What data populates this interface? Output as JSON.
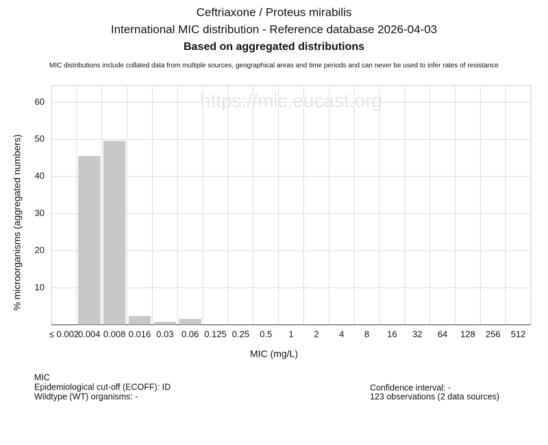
{
  "chart_data": {
    "type": "bar",
    "title": "Ceftriaxone / Proteus mirabilis",
    "subtitle": "International MIC distribution - Reference database 2026-04-03",
    "subtitle2": "Based on aggregated distributions",
    "note": "MIC distributions include collated data from multiple sources, geographical areas and time periods and can never be used to infer rates of resistance",
    "watermark": "https://mic.eucast.org",
    "x_label": "MIC (mg/L)",
    "y_label": "% microorganisms (aggregated numbers)",
    "categories": [
      "≤ 0.002",
      "0.004",
      "0.008",
      "0.016",
      "0.03",
      "0.06",
      "0.125",
      "0.25",
      "0.5",
      "1",
      "2",
      "4",
      "8",
      "16",
      "32",
      "64",
      "128",
      "256",
      "512"
    ],
    "values": [
      0,
      45.5,
      49.6,
      2.4,
      0.8,
      1.6,
      0,
      0,
      0,
      0,
      0,
      0,
      0,
      0,
      0,
      0,
      0,
      0,
      0
    ],
    "color": "#c8c8c8",
    "ylim": [
      0,
      64.5
    ],
    "yticks": [
      10,
      20,
      30,
      40,
      50,
      60
    ],
    "grid": true
  },
  "footer": {
    "left": [
      "MIC",
      "Epidemiological cut-off (ECOFF): ID",
      "Wildtype (WT) organisms:  -"
    ],
    "right": [
      "Confidence interval: -",
      "123 observations (2 data sources)"
    ]
  }
}
